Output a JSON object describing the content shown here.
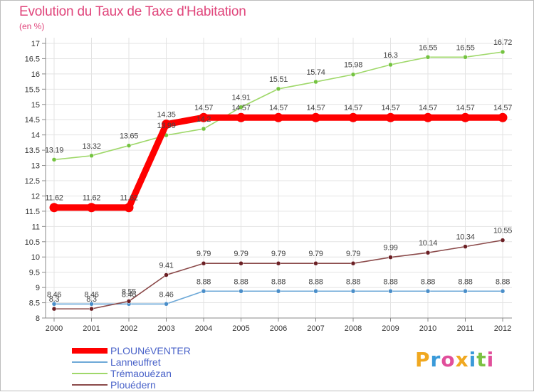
{
  "header": {
    "title": "Evolution du Taux de Taxe d'Habitation",
    "subtitle": "(en %)"
  },
  "logo": {
    "letters": [
      "P",
      "r",
      "o",
      "x",
      "i",
      "t",
      "i"
    ],
    "colors": [
      "#f0a820",
      "#3a9ad9",
      "#e14f9b",
      "#f0a820",
      "#3a9ad9",
      "#7cc243",
      "#e14f9b"
    ]
  },
  "chart_data": {
    "type": "line",
    "title": "Evolution du Taux de Taxe d'Habitation",
    "ylabel": "(en %)",
    "xlabel": "",
    "x": [
      "2000",
      "2001",
      "2002",
      "2003",
      "2004",
      "2005",
      "2006",
      "2007",
      "2008",
      "2009",
      "2010",
      "2011",
      "2012"
    ],
    "ylim": [
      8,
      17
    ],
    "yticks": [
      "8",
      "8.5",
      "9",
      "9.5",
      "10",
      "10.5",
      "11",
      "11.5",
      "12",
      "12.5",
      "13",
      "13.5",
      "14",
      "14.5",
      "15",
      "15.5",
      "16",
      "16.5",
      "17"
    ],
    "grid": true,
    "legend_position": "bottom-left",
    "series": [
      {
        "name": "PLOUNéVENTER",
        "color": "#ff0000",
        "emphasis": true,
        "values": [
          11.62,
          11.62,
          11.62,
          14.35,
          14.57,
          14.57,
          14.57,
          14.57,
          14.57,
          14.57,
          14.57,
          14.57,
          14.57
        ],
        "labels": [
          "11.62",
          "11.62",
          "11.62",
          "14.35",
          "14.57",
          "14.57",
          "14.57",
          "14.57",
          "14.57",
          "14.57",
          "14.57",
          "14.57",
          "14.57"
        ]
      },
      {
        "name": "Lanneuffret",
        "color": "#6ea9d8",
        "marker_color": "#4a8ec9",
        "values": [
          8.46,
          8.46,
          8.46,
          8.46,
          8.88,
          8.88,
          8.88,
          8.88,
          8.88,
          8.88,
          8.88,
          8.88,
          8.88
        ],
        "labels": [
          "8.46",
          "8.46",
          "8.46",
          "8.46",
          "8.88",
          "8.88",
          "8.88",
          "8.88",
          "8.88",
          "8.88",
          "8.88",
          "8.88",
          "8.88"
        ]
      },
      {
        "name": "Trémaouézan",
        "color": "#9fd86a",
        "marker_color": "#74c340",
        "values": [
          13.19,
          13.32,
          13.65,
          13.99,
          14.2,
          14.91,
          15.51,
          15.74,
          15.98,
          16.3,
          16.55,
          16.55,
          16.72
        ],
        "labels": [
          "13.19",
          "13.32",
          "13.65",
          "13.99",
          "14.2",
          "14.91",
          "15.51",
          "15.74",
          "15.98",
          "16.3",
          "16.55",
          "16.55",
          "16.72"
        ]
      },
      {
        "name": "Plouédern",
        "color": "#8b4a4a",
        "marker_color": "#6b1f24",
        "values": [
          8.3,
          8.3,
          8.55,
          9.41,
          9.79,
          9.79,
          9.79,
          9.79,
          9.79,
          9.99,
          10.14,
          10.34,
          10.55
        ],
        "labels": [
          "8.3",
          "8.3",
          "8.55",
          "9.41",
          "9.79",
          "9.79",
          "9.79",
          "9.79",
          "9.79",
          "9.99",
          "10.14",
          "10.34",
          "10.55"
        ]
      }
    ]
  }
}
